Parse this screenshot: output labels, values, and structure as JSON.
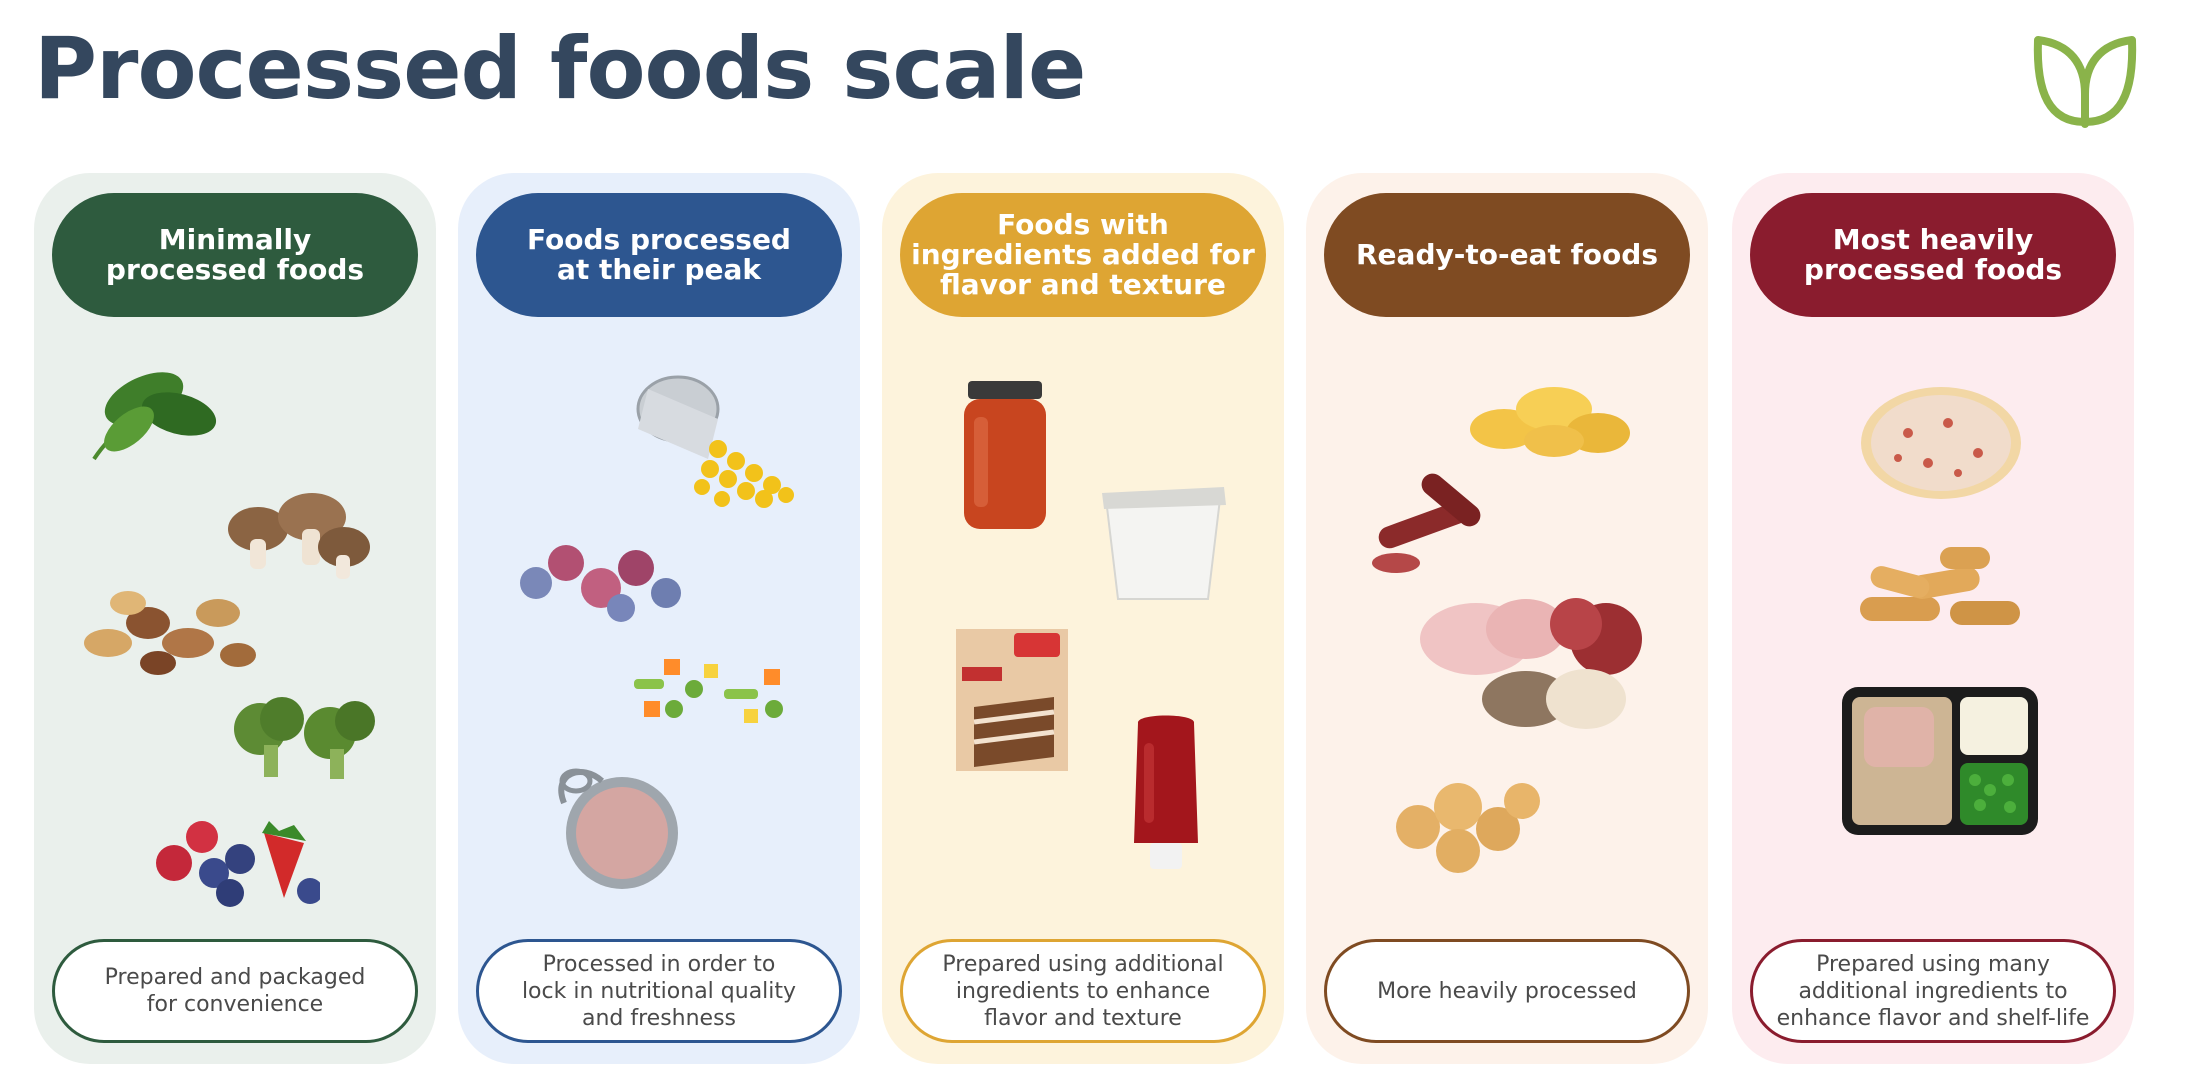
{
  "page": {
    "title": "Processed foods scale"
  },
  "logo": {
    "icon": "leaf-icon",
    "color": "#8ab34a"
  },
  "columns": [
    {
      "id": "minimal",
      "heading": "Minimally\nprocessed foods",
      "description": "Prepared and packaged\nfor convenience",
      "accent": "#2e5b3e",
      "background": "#eaf0ec",
      "foods": [
        "spinach-icon",
        "mushrooms-icon",
        "nuts-icon",
        "broccoli-icon",
        "berries-icon"
      ]
    },
    {
      "id": "peak",
      "heading": "Foods processed\nat their peak",
      "description": "Processed in order to\nlock in nutritional quality\nand freshness",
      "accent": "#2d5690",
      "background": "#e7effb",
      "foods": [
        "canned-corn-icon",
        "frozen-berries-icon",
        "frozen-vegetables-icon",
        "canned-tuna-icon"
      ]
    },
    {
      "id": "added",
      "heading": "Foods with\ningredients added for\nflavor and texture",
      "description": "Prepared using additional\ningredients to enhance\nflavor and texture",
      "accent": "#dea533",
      "background": "#fdf3dc",
      "foods": [
        "tomato-sauce-jar-icon",
        "yogurt-cup-icon",
        "cake-mix-box-icon",
        "ketchup-bottle-icon"
      ]
    },
    {
      "id": "ready",
      "heading": "Ready-to-eat foods",
      "description": "More heavily processed",
      "accent": "#7f4b22",
      "background": "#fdf2ea",
      "foods": [
        "potato-chips-icon",
        "sausage-icon",
        "deli-meats-icon",
        "crackers-icon"
      ]
    },
    {
      "id": "heavy",
      "heading": "Most heavily\nprocessed foods",
      "description": "Prepared using many\nadditional ingredients to\nenhance flavor and shelf-life",
      "accent": "#8a1c2e",
      "background": "#fdecef",
      "foods": [
        "frozen-pizza-icon",
        "chicken-nuggets-icon",
        "tv-dinner-icon"
      ]
    }
  ]
}
